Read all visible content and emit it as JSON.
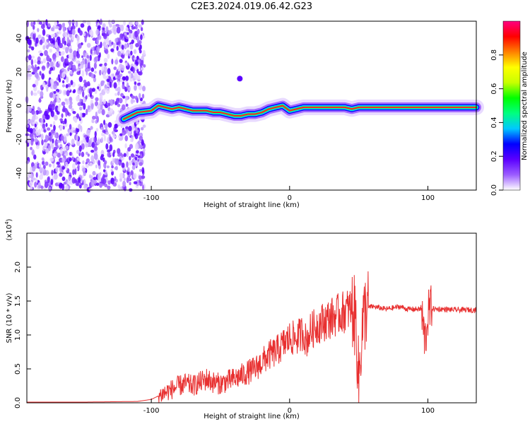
{
  "page_title": "C2E3.2024.019.06.42.G23",
  "chart_data": [
    {
      "type": "heatmap",
      "xlabel": "Height of straight line (km)",
      "ylabel": "Frequency (Hz)",
      "xlim": [
        -190,
        135
      ],
      "ylim": [
        -50,
        50
      ],
      "xticks": [
        -100,
        0,
        100
      ],
      "xtick_labels": [
        "-100",
        "0",
        "100"
      ],
      "yticks": [
        -40,
        -20,
        0,
        20,
        40
      ],
      "ytick_labels": [
        "-40",
        "-20",
        "0",
        "20",
        "40"
      ],
      "colorbar": {
        "label": "Normalized spectral amplitude",
        "range": [
          0,
          1
        ],
        "ticks": [
          0.0,
          0.2,
          0.4,
          0.6,
          0.8
        ],
        "tick_labels": [
          "0.0",
          "0.2",
          "0.4",
          "0.6",
          "0.8"
        ],
        "colormap": [
          "#ffffff",
          "#9b5cff",
          "#5b00ff",
          "#0000ff",
          "#00c8ff",
          "#00ff80",
          "#00ff00",
          "#c8ff00",
          "#ffff00",
          "#ff8000",
          "#ff0000",
          "#ff0080"
        ]
      },
      "trace": {
        "x": [
          -120,
          -110,
          -100,
          -95,
          -90,
          -85,
          -80,
          -75,
          -70,
          -65,
          -60,
          -55,
          -50,
          -45,
          -40,
          -35,
          -30,
          -25,
          -20,
          -15,
          -10,
          -5,
          0,
          5,
          10,
          15,
          20,
          30,
          40,
          45,
          50,
          60,
          80,
          100,
          120,
          135
        ],
        "y": [
          -8,
          -4,
          -3,
          0,
          -1,
          -2,
          -1,
          -2,
          -3,
          -3,
          -3,
          -4,
          -4,
          -5,
          -6,
          -6,
          -5,
          -5,
          -4,
          -2,
          -1,
          0,
          -3,
          -2,
          -1,
          -1,
          -1,
          -1,
          -1,
          -2,
          -1,
          -1,
          -1,
          -1,
          -1,
          -1
        ]
      },
      "noise_region": {
        "x_from": -190,
        "x_to": -105
      },
      "blob": {
        "x": -36,
        "y": 16
      }
    },
    {
      "type": "line",
      "xlabel": "Height of straight line (km)",
      "ylabel": "SNR (10 * v/v)",
      "y_multiplier": "(x10",
      "y_multiplier_exp": "4",
      "y_multiplier_close": ")",
      "xlim": [
        -190,
        135
      ],
      "ylim": [
        0,
        2.5
      ],
      "xticks": [
        -100,
        0,
        100
      ],
      "xtick_labels": [
        "-100",
        "0",
        "100"
      ],
      "yticks": [
        0.0,
        0.5,
        1.0,
        1.5,
        2.0
      ],
      "ytick_labels": [
        "0.0",
        "0.5",
        "1.0",
        "1.5",
        "2.0"
      ],
      "color": "#e83030",
      "x": [
        -190,
        -150,
        -110,
        -100,
        -95,
        -90,
        -85,
        -80,
        -75,
        -70,
        -65,
        -60,
        -55,
        -50,
        -45,
        -40,
        -35,
        -30,
        -25,
        -20,
        -15,
        -10,
        -5,
        0,
        5,
        10,
        12,
        15,
        20,
        25,
        30,
        35,
        40,
        45,
        48,
        50,
        52,
        55,
        60,
        65,
        70,
        75,
        80,
        85,
        90,
        95,
        98,
        100,
        102,
        105,
        110,
        120,
        135
      ],
      "y": [
        0.01,
        0.01,
        0.02,
        0.05,
        0.1,
        0.15,
        0.2,
        0.25,
        0.28,
        0.25,
        0.3,
        0.35,
        0.3,
        0.28,
        0.32,
        0.35,
        0.4,
        0.45,
        0.5,
        0.6,
        0.7,
        0.75,
        0.85,
        0.95,
        0.95,
        1.05,
        0.9,
        1.05,
        1.15,
        1.2,
        1.25,
        1.3,
        1.35,
        1.4,
        1.2,
        0.3,
        1.0,
        1.4,
        1.42,
        1.4,
        1.38,
        1.4,
        1.42,
        1.38,
        1.38,
        1.38,
        0.9,
        1.3,
        1.4,
        1.38,
        1.38,
        1.37,
        1.37
      ]
    }
  ]
}
